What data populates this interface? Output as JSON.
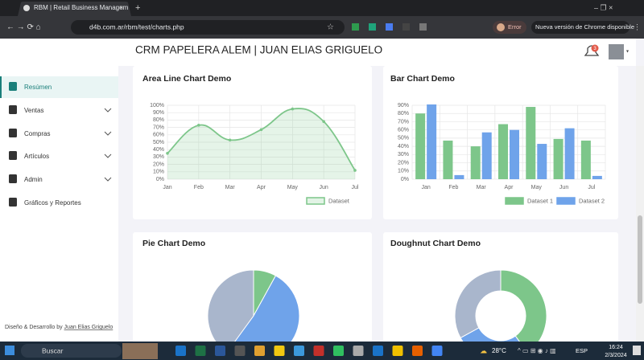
{
  "browser": {
    "tab_title": "RBM | Retail Business Managem",
    "url": "d4b.com.ar/rbm/test/charts.php",
    "profile_status": "Error",
    "update_notice": "Nueva versión de Chrome disponible"
  },
  "app": {
    "title": "CRM PAPELERA ALEM | JUAN ELIAS GRIGUELO",
    "notifications": 3,
    "sidebar": [
      "Resúmen",
      "Ventas",
      "Compras",
      "Artículos",
      "Admin",
      "Gráficos y Reportes"
    ],
    "footer": {
      "text": "Diseño & Desarrollo by",
      "author": "Juan Elias Griguelo"
    }
  },
  "chart_data": [
    {
      "type": "line",
      "title": "Area Line Chart Demo",
      "area": true,
      "grid": true,
      "categories": [
        "Jan",
        "Feb",
        "Mar",
        "Apr",
        "May",
        "Jun",
        "Jul"
      ],
      "series": [
        {
          "name": "Dataset",
          "color": "#7dc68a",
          "values": [
            35,
            73,
            53,
            67,
            95,
            78,
            12
          ]
        }
      ],
      "ylim": [
        0,
        100
      ],
      "yticks": [
        {
          "value": 0,
          "label": "0%"
        },
        {
          "value": 10,
          "label": "10%"
        },
        {
          "value": 20,
          "label": "20%"
        },
        {
          "value": 30,
          "label": "30%"
        },
        {
          "value": 40,
          "label": "40%"
        },
        {
          "value": 50,
          "label": "50%"
        },
        {
          "value": 60,
          "label": "60%"
        },
        {
          "value": 70,
          "label": "70%"
        },
        {
          "value": 80,
          "label": "80%"
        },
        {
          "value": 90,
          "label": "90%"
        },
        {
          "value": 100,
          "label": "100%"
        }
      ]
    },
    {
      "type": "bar",
      "title": "Bar Chart Demo",
      "grid": true,
      "categories": [
        "Jan",
        "Feb",
        "Mar",
        "Apr",
        "May",
        "Jun",
        "Jul"
      ],
      "series": [
        {
          "name": "Dataset 1",
          "color": "#7dc68a",
          "values": [
            80,
            47,
            40,
            67,
            88,
            49,
            47
          ]
        },
        {
          "name": "Dataset 2",
          "color": "#6fa3ea",
          "values": [
            91,
            5,
            57,
            60,
            43,
            62,
            4
          ]
        }
      ],
      "ylim": [
        0,
        90
      ],
      "yticks": [
        {
          "value": 0,
          "label": "0%"
        },
        {
          "value": 10,
          "label": "10%"
        },
        {
          "value": 20,
          "label": "20%"
        },
        {
          "value": 30,
          "label": "30%"
        },
        {
          "value": 40,
          "label": "40%"
        },
        {
          "value": 50,
          "label": "50%"
        },
        {
          "value": 60,
          "label": "60%"
        },
        {
          "value": 70,
          "label": "70%"
        },
        {
          "value": 80,
          "label": "80%"
        },
        {
          "value": 90,
          "label": "90%"
        }
      ]
    },
    {
      "type": "pie",
      "title": "Pie Chart Demo",
      "values": [
        8,
        52,
        40
      ],
      "colors": [
        "#7dc68a",
        "#6fa3ea",
        "#a9b6cc"
      ]
    },
    {
      "type": "doughnut",
      "title": "Doughnut Chart Demo",
      "values": [
        40,
        27,
        33
      ],
      "colors": [
        "#7dc68a",
        "#6fa3ea",
        "#a9b6cc"
      ]
    }
  ],
  "taskbar": {
    "search": "Buscar",
    "weather": "28°C",
    "language": "ESP",
    "time": "16:24",
    "date": "2/3/2024"
  }
}
